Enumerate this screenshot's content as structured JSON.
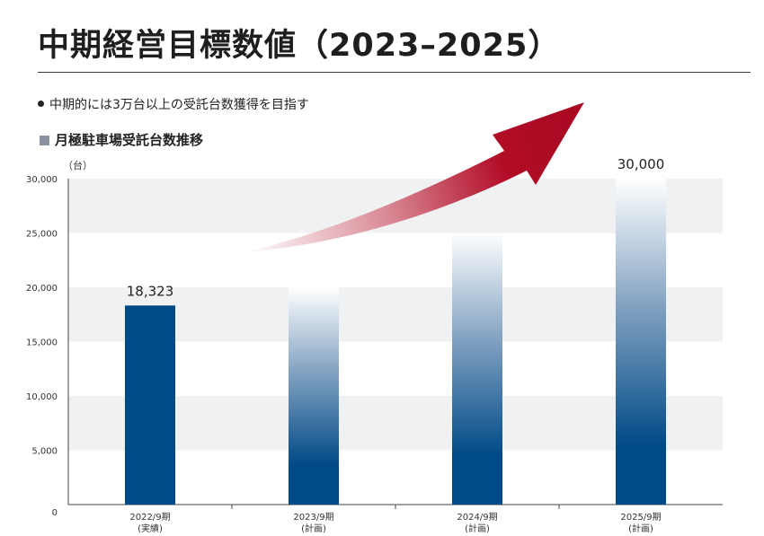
{
  "page": {
    "title": "中期経営目標数値（2023–2025）",
    "bullet": "中期的には3万台以上の受託台数獲得を目指す"
  },
  "chart_data": {
    "type": "bar",
    "title": "月極駐車場受託台数推移",
    "ylabel": "（台）",
    "categories": [
      {
        "line1": "2022/9期",
        "line2": "(実績)"
      },
      {
        "line1": "2023/9期",
        "line2": "(計画)"
      },
      {
        "line1": "2024/9期",
        "line2": "(計画)"
      },
      {
        "line1": "2025/9期",
        "line2": "(計画)"
      }
    ],
    "values": [
      18323,
      20000,
      25000,
      30000
    ],
    "kinds": [
      "actual",
      "plan",
      "plan",
      "plan"
    ],
    "data_labels": [
      "18,323",
      "",
      "",
      "30,000"
    ],
    "yticks": [
      0,
      5000,
      10000,
      15000,
      20000,
      25000,
      30000
    ],
    "ytick_labels": [
      "0",
      "5,000",
      "10,000",
      "15,000",
      "20,000",
      "25,000",
      "30,000"
    ],
    "ylim": [
      0,
      30000
    ],
    "grid": "alternating bands",
    "annotation": "upward growth arrow",
    "colors": {
      "actual": "#004a87",
      "plan_bottom": "#004a87",
      "plan_top": "#ffffff",
      "arrow": "#b20d27",
      "band": "#f0f1f3"
    }
  }
}
